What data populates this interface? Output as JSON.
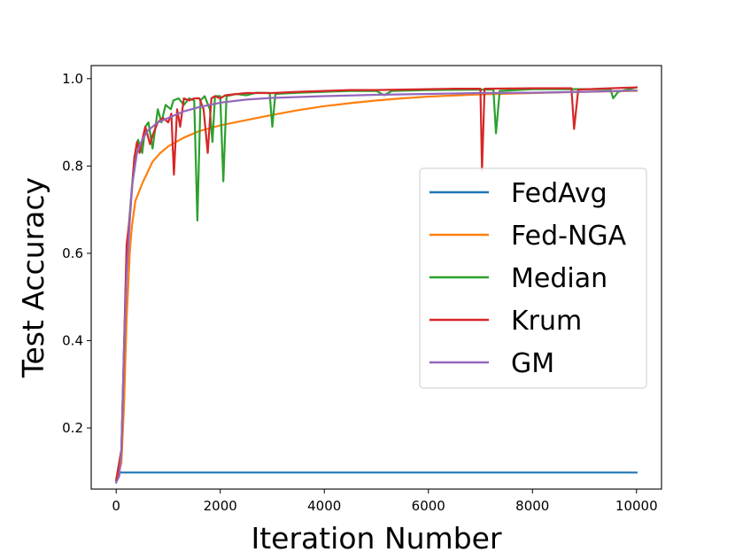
{
  "chart_data": {
    "type": "line",
    "xlabel": "Iteration Number",
    "ylabel": "Test Accuracy",
    "xlim": [
      -480,
      10480
    ],
    "ylim": [
      0.06,
      1.03
    ],
    "xticks": [
      0,
      2000,
      4000,
      6000,
      8000,
      10000
    ],
    "xtick_labels": [
      "0",
      "2000",
      "4000",
      "6000",
      "8000",
      "10000"
    ],
    "yticks": [
      0.2,
      0.4,
      0.6,
      0.8,
      1.0
    ],
    "ytick_labels": [
      "0.2",
      "0.4",
      "0.6",
      "0.8",
      "1.0"
    ],
    "grid": false,
    "legend_position": "center-right",
    "series": [
      {
        "name": "FedAvg",
        "color": "#1f77b4",
        "points": [
          [
            0,
            0.08
          ],
          [
            70,
            0.098
          ],
          [
            10000,
            0.098
          ]
        ]
      },
      {
        "name": "Fed-NGA",
        "color": "#ff7f0e",
        "points": [
          [
            0,
            0.08
          ],
          [
            100,
            0.12
          ],
          [
            150,
            0.25
          ],
          [
            200,
            0.45
          ],
          [
            260,
            0.6
          ],
          [
            300,
            0.66
          ],
          [
            370,
            0.72
          ],
          [
            500,
            0.76
          ],
          [
            700,
            0.81
          ],
          [
            850,
            0.83
          ],
          [
            1000,
            0.845
          ],
          [
            1300,
            0.865
          ],
          [
            1600,
            0.88
          ],
          [
            2000,
            0.893
          ],
          [
            2500,
            0.905
          ],
          [
            3000,
            0.917
          ],
          [
            3500,
            0.928
          ],
          [
            4000,
            0.937
          ],
          [
            4500,
            0.944
          ],
          [
            5000,
            0.95
          ],
          [
            5500,
            0.955
          ],
          [
            6000,
            0.959
          ],
          [
            7000,
            0.964
          ],
          [
            8000,
            0.967
          ],
          [
            9000,
            0.97
          ],
          [
            10000,
            0.972
          ]
        ]
      },
      {
        "name": "Median",
        "color": "#2ca02c",
        "points": [
          [
            0,
            0.08
          ],
          [
            100,
            0.15
          ],
          [
            200,
            0.6
          ],
          [
            280,
            0.72
          ],
          [
            350,
            0.82
          ],
          [
            420,
            0.86
          ],
          [
            500,
            0.83
          ],
          [
            560,
            0.89
          ],
          [
            620,
            0.9
          ],
          [
            700,
            0.84
          ],
          [
            800,
            0.93
          ],
          [
            870,
            0.9
          ],
          [
            950,
            0.94
          ],
          [
            1050,
            0.93
          ],
          [
            1100,
            0.95
          ],
          [
            1200,
            0.955
          ],
          [
            1300,
            0.94
          ],
          [
            1400,
            0.955
          ],
          [
            1500,
            0.95
          ],
          [
            1560,
            0.675
          ],
          [
            1620,
            0.95
          ],
          [
            1700,
            0.96
          ],
          [
            1800,
            0.93
          ],
          [
            1850,
            0.855
          ],
          [
            1900,
            0.96
          ],
          [
            2000,
            0.96
          ],
          [
            2060,
            0.765
          ],
          [
            2120,
            0.96
          ],
          [
            2300,
            0.965
          ],
          [
            2500,
            0.962
          ],
          [
            2700,
            0.968
          ],
          [
            2950,
            0.967
          ],
          [
            3000,
            0.89
          ],
          [
            3060,
            0.965
          ],
          [
            3500,
            0.968
          ],
          [
            4000,
            0.97
          ],
          [
            4500,
            0.972
          ],
          [
            5000,
            0.972
          ],
          [
            5150,
            0.962
          ],
          [
            5300,
            0.972
          ],
          [
            6000,
            0.974
          ],
          [
            7000,
            0.975
          ],
          [
            7250,
            0.975
          ],
          [
            7300,
            0.875
          ],
          [
            7370,
            0.972
          ],
          [
            8000,
            0.976
          ],
          [
            9000,
            0.976
          ],
          [
            9500,
            0.976
          ],
          [
            9550,
            0.955
          ],
          [
            9650,
            0.97
          ],
          [
            10000,
            0.98
          ]
        ]
      },
      {
        "name": "Krum",
        "color": "#d62728",
        "points": [
          [
            0,
            0.08
          ],
          [
            100,
            0.15
          ],
          [
            200,
            0.62
          ],
          [
            260,
            0.68
          ],
          [
            350,
            0.82
          ],
          [
            400,
            0.855
          ],
          [
            450,
            0.83
          ],
          [
            520,
            0.87
          ],
          [
            560,
            0.89
          ],
          [
            650,
            0.85
          ],
          [
            700,
            0.87
          ],
          [
            800,
            0.9
          ],
          [
            900,
            0.91
          ],
          [
            1000,
            0.9
          ],
          [
            1060,
            0.92
          ],
          [
            1110,
            0.78
          ],
          [
            1170,
            0.93
          ],
          [
            1230,
            0.89
          ],
          [
            1300,
            0.955
          ],
          [
            1400,
            0.95
          ],
          [
            1500,
            0.955
          ],
          [
            1600,
            0.955
          ],
          [
            1680,
            0.93
          ],
          [
            1760,
            0.83
          ],
          [
            1830,
            0.955
          ],
          [
            1900,
            0.96
          ],
          [
            2000,
            0.955
          ],
          [
            2100,
            0.962
          ],
          [
            2500,
            0.967
          ],
          [
            3000,
            0.967
          ],
          [
            3500,
            0.97
          ],
          [
            4000,
            0.972
          ],
          [
            4500,
            0.974
          ],
          [
            5000,
            0.974
          ],
          [
            5500,
            0.975
          ],
          [
            6000,
            0.976
          ],
          [
            6500,
            0.977
          ],
          [
            7000,
            0.977
          ],
          [
            7030,
            0.79
          ],
          [
            7080,
            0.977
          ],
          [
            8000,
            0.978
          ],
          [
            8750,
            0.978
          ],
          [
            8800,
            0.885
          ],
          [
            8880,
            0.975
          ],
          [
            9500,
            0.978
          ],
          [
            10000,
            0.98
          ]
        ]
      },
      {
        "name": "GM",
        "color": "#9467bd",
        "points": [
          [
            0,
            0.075
          ],
          [
            60,
            0.09
          ],
          [
            100,
            0.15
          ],
          [
            150,
            0.38
          ],
          [
            200,
            0.55
          ],
          [
            300,
            0.75
          ],
          [
            400,
            0.83
          ],
          [
            500,
            0.86
          ],
          [
            600,
            0.88
          ],
          [
            800,
            0.9
          ],
          [
            1000,
            0.91
          ],
          [
            1300,
            0.925
          ],
          [
            1600,
            0.935
          ],
          [
            2000,
            0.945
          ],
          [
            2500,
            0.952
          ],
          [
            3000,
            0.956
          ],
          [
            4000,
            0.96
          ],
          [
            5000,
            0.963
          ],
          [
            6000,
            0.965
          ],
          [
            7000,
            0.967
          ],
          [
            8000,
            0.968
          ],
          [
            9000,
            0.97
          ],
          [
            10000,
            0.973
          ]
        ]
      }
    ]
  }
}
